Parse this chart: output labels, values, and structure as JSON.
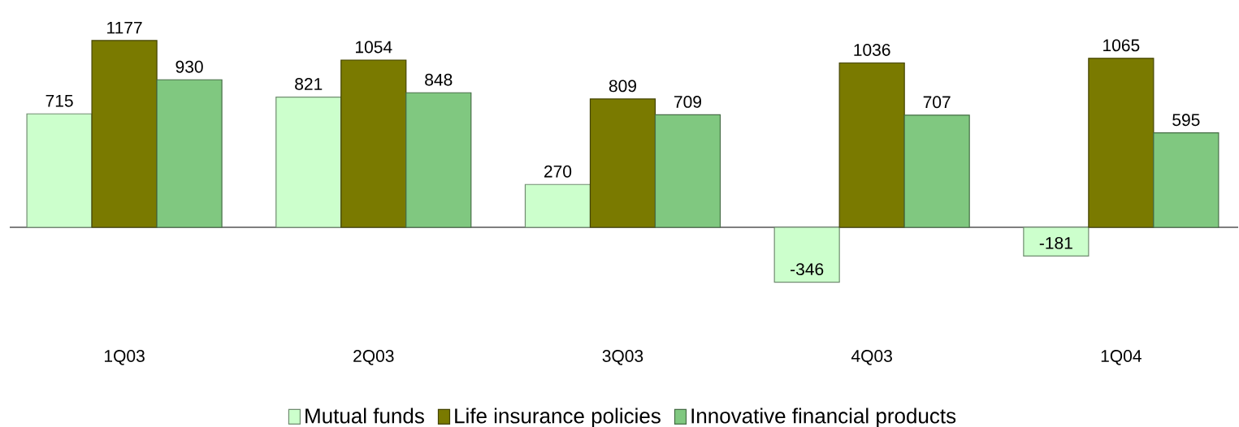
{
  "chart_data": {
    "type": "bar",
    "categories": [
      "1Q03",
      "2Q03",
      "3Q03",
      "4Q03",
      "1Q04"
    ],
    "series": [
      {
        "name": "Mutual funds",
        "color": "#ccffcc",
        "values": [
          715,
          821,
          270,
          -346,
          -181
        ]
      },
      {
        "name": "Life insurance policies",
        "color": "#7a7a00",
        "values": [
          1177,
          1054,
          809,
          1036,
          1065
        ]
      },
      {
        "name": "Innovative financial products",
        "color": "#80c880",
        "values": [
          930,
          848,
          709,
          707,
          595
        ]
      }
    ],
    "data_labels": true,
    "legend": "bottom"
  }
}
